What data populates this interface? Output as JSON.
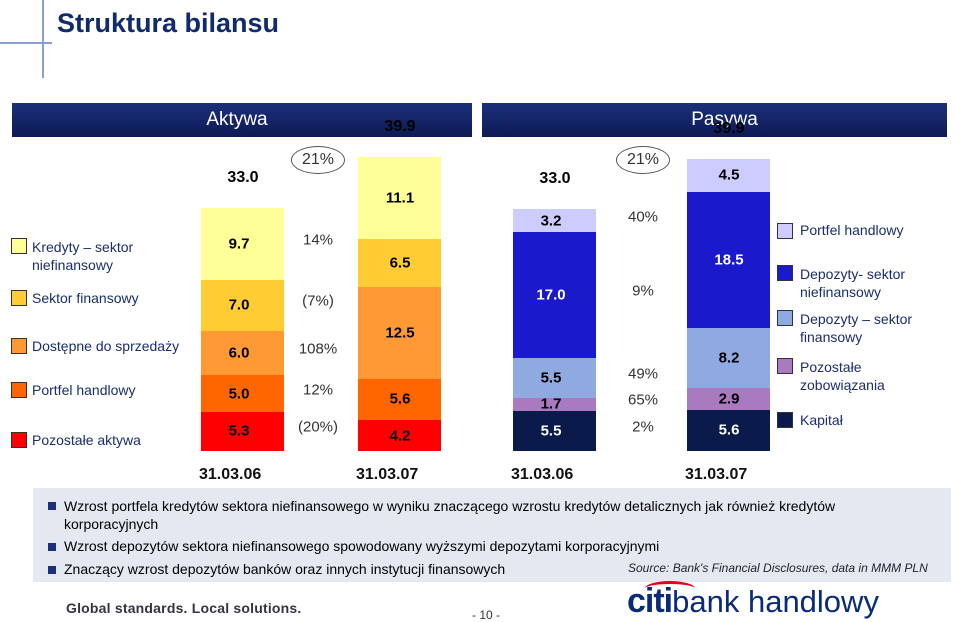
{
  "title": "Struktura bilansu",
  "headers": {
    "assets": "Aktywa",
    "liabilities": "Pasywa"
  },
  "colors": {
    "kredyty": "#ffff99",
    "sektor_fin": "#ffcc33",
    "dostepne": "#ff9933",
    "portfel_aktywa": "#ff6600",
    "pozostale_aktywa": "#ff0000",
    "portfel_pasywa": "#ccccff",
    "depozyty_niefin": "#1a1acc",
    "depozyty_fin": "#8eaae0",
    "pozostale_zob": "#a97ac0",
    "kapital": "#0a1a4a",
    "header": "#1b2f7a",
    "title": "#102a6b"
  },
  "legend_left": [
    {
      "label": "Kredyty – sektor niefinansowy",
      "color": "#ffff99"
    },
    {
      "label": "Sektor finansowy",
      "color": "#ffcc33"
    },
    {
      "label": "Dostępne do sprzedaży",
      "color": "#ff9933"
    },
    {
      "label": "Portfel handlowy",
      "color": "#ff6600"
    },
    {
      "label": "Pozostałe aktywa",
      "color": "#ff0000"
    }
  ],
  "legend_right": [
    {
      "label": "Portfel handlowy",
      "color": "#ccccff"
    },
    {
      "label": "Depozyty- sektor niefinansowy",
      "color": "#1a1acc"
    },
    {
      "label": "Depozyty – sektor finansowy",
      "color": "#8eaae0"
    },
    {
      "label": "Pozostałe zobowiązania",
      "color": "#a97ac0"
    },
    {
      "label": "Kapitał",
      "color": "#0a1a4a"
    }
  ],
  "chart_data": [
    {
      "type": "bar",
      "title": "Aktywa",
      "categories": [
        "31.03.06",
        "31.03.07"
      ],
      "totals": [
        "33.0",
        "39.9"
      ],
      "series": [
        {
          "name": "Pozostałe aktywa",
          "values": [
            5.3,
            4.2
          ],
          "labels": [
            "5.3",
            "4.2"
          ],
          "change": "(20%)"
        },
        {
          "name": "Portfel handlowy",
          "values": [
            5.0,
            5.6
          ],
          "labels": [
            "5.0",
            "5.6"
          ],
          "change": "12%"
        },
        {
          "name": "Dostępne do sprzedaży",
          "values": [
            6.0,
            12.5
          ],
          "labels": [
            "6.0",
            "12.5"
          ],
          "change": "108%"
        },
        {
          "name": "Sektor finansowy",
          "values": [
            7.0,
            6.5
          ],
          "labels": [
            "7.0",
            "6.5"
          ],
          "change": "(7%)"
        },
        {
          "name": "Kredyty – sektor niefinansowy",
          "values": [
            9.7,
            11.1
          ],
          "labels": [
            "9.7",
            "11.1"
          ],
          "change": "14%"
        }
      ],
      "total_change": "21%"
    },
    {
      "type": "bar",
      "title": "Pasywa",
      "categories": [
        "31.03.06",
        "31.03.07"
      ],
      "totals": [
        "33.0",
        "39.9"
      ],
      "series": [
        {
          "name": "Kapitał",
          "values": [
            5.5,
            5.6
          ],
          "labels": [
            "5.5",
            "5.6"
          ],
          "change": "2%"
        },
        {
          "name": "Pozostałe zobowiązania",
          "values": [
            1.7,
            2.9
          ],
          "labels": [
            "1.7",
            "2.9"
          ],
          "change": "65%"
        },
        {
          "name": "Depozyty – sektor finansowy",
          "values": [
            5.5,
            8.2
          ],
          "labels": [
            "5.5",
            "8.2"
          ],
          "change": "49%"
        },
        {
          "name": "Depozyty- sektor niefinansowy",
          "values": [
            17.0,
            18.5
          ],
          "labels": [
            "17.0",
            "18.5"
          ],
          "change": "9%"
        },
        {
          "name": "Portfel handlowy",
          "values": [
            3.2,
            4.5
          ],
          "labels": [
            "3.2",
            "4.5"
          ],
          "change": "40%"
        }
      ],
      "total_change": "21%"
    }
  ],
  "bullets": [
    "Wzrost portfela kredytów sektora niefinansowego w wyniku znaczącego wzrostu kredytów detalicznych jak również kredytów korporacyjnych",
    "Wzrost depozytów sektora niefinansowego spowodowany wyższymi depozytami korporacyjnymi",
    "Znaczący wzrost depozytów banków oraz innych instytucji finansowych"
  ],
  "source": "Source: Bank's Financial Disclosures, data in MMM PLN",
  "footer": {
    "tagline": "Global standards. Local solutions.",
    "page": "- 10 -",
    "logo_citi": "citi",
    "logo_rest": "bank handlowy"
  }
}
